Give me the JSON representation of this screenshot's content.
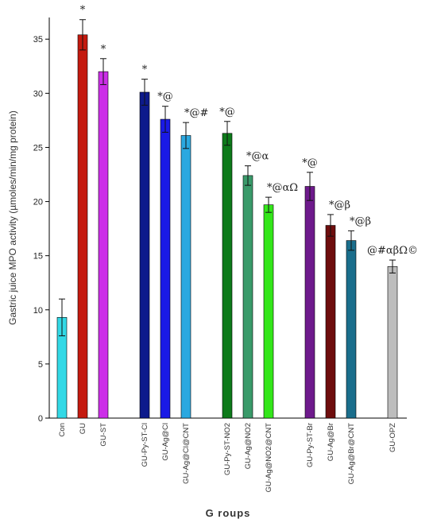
{
  "chart_data": {
    "type": "bar",
    "xlabel": "G roups",
    "ylabel": "Gastric juice MPO activity (µmoles/min/mg protein)",
    "ylim": [
      0,
      37
    ],
    "yticks": [
      0,
      5,
      10,
      15,
      20,
      25,
      30,
      35
    ],
    "grid": false,
    "categories": [
      "Con",
      "GU",
      "GU-ST",
      "GU-Py-ST-Cl",
      "GU-Ag@Cl",
      "GU-Ag@Cl@CNT",
      "GU-Py-ST-NO2",
      "GU-Ag@NO2",
      "GU-Ag@NO2@CNT",
      "GU-Py-ST-Br",
      "GU-Ag@Br",
      "GU-Ag@Br@CNT",
      "GU-OPZ"
    ],
    "values": [
      9.3,
      35.4,
      32.0,
      30.1,
      27.6,
      26.1,
      26.3,
      22.4,
      19.7,
      21.4,
      17.8,
      16.4,
      14.0
    ],
    "errors": [
      1.7,
      1.4,
      1.2,
      1.2,
      1.2,
      1.2,
      1.1,
      0.9,
      0.7,
      1.3,
      1.0,
      0.9,
      0.6
    ],
    "annotations": [
      "",
      "*",
      "*",
      "*",
      "*@",
      "*@#",
      "*@",
      "*@α",
      "*@αΩ",
      "*@",
      "*@β",
      "*@β",
      "@#αβΩ©"
    ],
    "colors": [
      "#33d9e6",
      "#c41a0f",
      "#cc2ee8",
      "#0d1a8c",
      "#1a1ae6",
      "#2ba8e0",
      "#0d7a1a",
      "#3a9a6a",
      "#33e61a",
      "#6e1a8c",
      "#6e0d0d",
      "#1a6e8c",
      "#bdbdbd"
    ]
  }
}
